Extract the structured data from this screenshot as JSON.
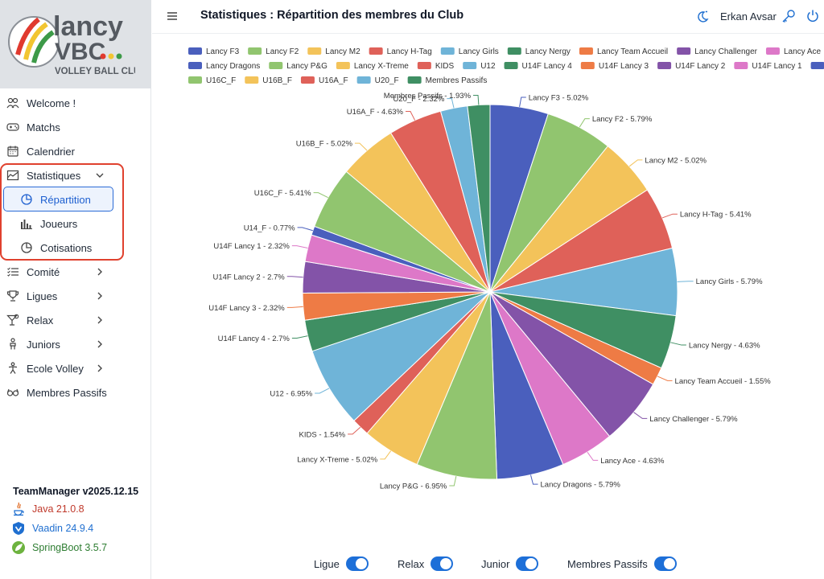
{
  "header": {
    "title": "Statistiques : Répartition des membres du Club",
    "user_name": "Erkan Avsar"
  },
  "logo": {
    "line1": "lancy",
    "line2": "VBC",
    "subtitle": "VOLLEY BALL CLUB"
  },
  "sidebar": {
    "items": [
      {
        "label": "Welcome !"
      },
      {
        "label": "Matchs"
      },
      {
        "label": "Calendrier"
      },
      {
        "label": "Statistiques"
      },
      {
        "label": "Répartition"
      },
      {
        "label": "Joueurs"
      },
      {
        "label": "Cotisations"
      },
      {
        "label": "Comité"
      },
      {
        "label": "Ligues"
      },
      {
        "label": "Relax"
      },
      {
        "label": "Juniors"
      },
      {
        "label": "Ecole Volley"
      },
      {
        "label": "Membres Passifs"
      }
    ],
    "version": "TeamManager v2025.12.15",
    "tech": [
      {
        "label": "Java 21.0.8",
        "color": "#c0392b"
      },
      {
        "label": "Vaadin 24.9.4",
        "color": "#1f6fd0"
      },
      {
        "label": "SpringBoot 3.5.7",
        "color": "#2e7d32"
      }
    ]
  },
  "toggles": [
    {
      "label": "Ligue",
      "on": true
    },
    {
      "label": "Relax",
      "on": true
    },
    {
      "label": "Junior",
      "on": true
    },
    {
      "label": "Membres Passifs",
      "on": true
    }
  ],
  "chart_data": {
    "type": "pie",
    "title": "",
    "legend_position": "top",
    "slices": [
      {
        "label": "Lancy F3",
        "value": 5.02,
        "color": "#4a5fbd"
      },
      {
        "label": "Lancy F2",
        "value": 5.79,
        "color": "#91c56f"
      },
      {
        "label": "Lancy M2",
        "value": 5.02,
        "color": "#f3c35a"
      },
      {
        "label": "Lancy H-Tag",
        "value": 5.41,
        "color": "#df6159"
      },
      {
        "label": "Lancy Girls",
        "value": 5.79,
        "color": "#6fb4d8"
      },
      {
        "label": "Lancy Nergy",
        "value": 4.63,
        "color": "#3f8f63"
      },
      {
        "label": "Lancy Team Accueil",
        "value": 1.55,
        "color": "#ee7b45"
      },
      {
        "label": "Lancy Challenger",
        "value": 5.79,
        "color": "#8353a8"
      },
      {
        "label": "Lancy Ace",
        "value": 4.63,
        "color": "#dd78c8"
      },
      {
        "label": "Lancy Dragons",
        "value": 5.79,
        "color": "#4a5fbd"
      },
      {
        "label": "Lancy P&G",
        "value": 6.95,
        "color": "#91c56f"
      },
      {
        "label": "Lancy X-Treme",
        "value": 5.02,
        "color": "#f3c35a"
      },
      {
        "label": "KIDS",
        "value": 1.54,
        "color": "#df6159"
      },
      {
        "label": "U12",
        "value": 6.95,
        "color": "#6fb4d8"
      },
      {
        "label": "U14F Lancy 4",
        "value": 2.7,
        "color": "#3f8f63"
      },
      {
        "label": "U14F Lancy 3",
        "value": 2.32,
        "color": "#ee7b45"
      },
      {
        "label": "U14F Lancy 2",
        "value": 2.7,
        "color": "#8353a8"
      },
      {
        "label": "U14F Lancy 1",
        "value": 2.32,
        "color": "#dd78c8"
      },
      {
        "label": "U14_F",
        "value": 0.77,
        "color": "#4a5fbd"
      },
      {
        "label": "U16C_F",
        "value": 5.41,
        "color": "#91c56f"
      },
      {
        "label": "U16B_F",
        "value": 5.02,
        "color": "#f3c35a"
      },
      {
        "label": "U16A_F",
        "value": 4.63,
        "color": "#df6159"
      },
      {
        "label": "U20_F",
        "value": 2.32,
        "color": "#6fb4d8"
      },
      {
        "label": "Membres Passifs",
        "value": 1.93,
        "color": "#3f8f63"
      }
    ]
  }
}
